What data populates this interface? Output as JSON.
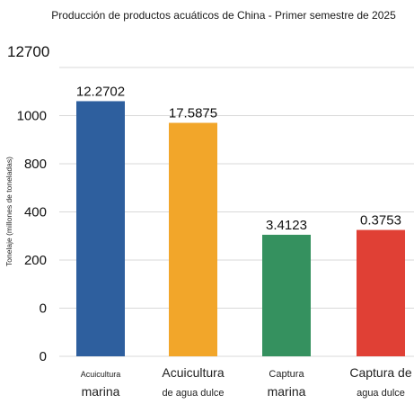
{
  "chart_data": {
    "type": "bar",
    "title": "Producción de productos acuáticos de China - Primer semestre de 2025",
    "ylabel": "Tonelaje (millones de toneladas)",
    "xlabel": "",
    "y_tick_labels": [
      "12700",
      "1000",
      "800",
      "400",
      "200",
      "0",
      "0"
    ],
    "grid": true,
    "legend": "none",
    "categories": [
      {
        "line1": "Acuicultura",
        "line2": "marina"
      },
      {
        "line1": "Acuicultura",
        "line2": "de agua dulce"
      },
      {
        "line1": "Captura",
        "line2": "marina"
      },
      {
        "line1": "Captura de",
        "line2": "agua dulce"
      }
    ],
    "data_labels": [
      "12.2702",
      "17.5875",
      "3.4123",
      "0.3753"
    ],
    "bar_levels_on_axis": [
      1060,
      970,
      505,
      525
    ],
    "axis_scale": {
      "tick_positions": [
        1200,
        1000,
        800,
        600,
        400,
        200,
        0
      ]
    },
    "colors": [
      "#2e5f9e",
      "#f2a62a",
      "#35915f",
      "#e04035"
    ]
  }
}
